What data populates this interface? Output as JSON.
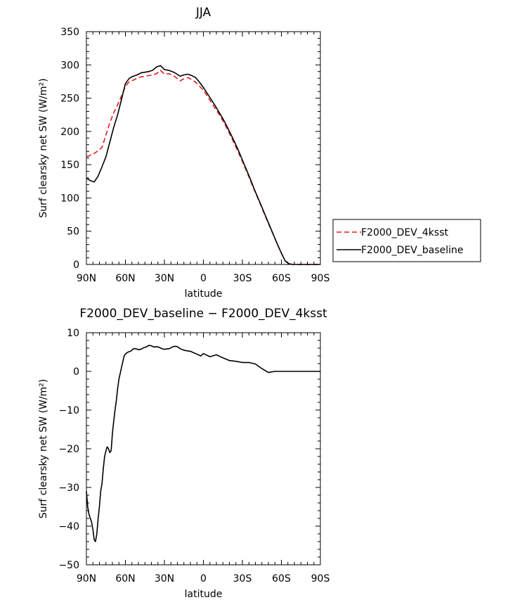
{
  "chart_data": [
    {
      "type": "line",
      "title": "JJA",
      "xlabel": "latitude",
      "ylabel": "Surf clearsky net SW (W/m²)",
      "xlim": [
        -90,
        90
      ],
      "ylim": [
        0,
        350
      ],
      "x_axis_direction": "90N to 90S (north on left)",
      "xtick_values": [
        -90,
        -60,
        -30,
        0,
        30,
        60,
        90
      ],
      "xtick_labels": [
        "90N",
        "60N",
        "30N",
        "0",
        "30S",
        "60S",
        "90S"
      ],
      "ytick_values": [
        0,
        50,
        100,
        150,
        200,
        250,
        300,
        350
      ],
      "ytick_labels": [
        "0",
        "50",
        "100",
        "150",
        "200",
        "250",
        "300",
        "350"
      ],
      "legend": {
        "placement": "right, outside plot",
        "entries": [
          "F2000_DEV_4ksst",
          "F2000_DEV_baseline"
        ]
      },
      "series": [
        {
          "name": "F2000_DEV_4ksst",
          "color": "#e41a1c",
          "dash": "dashed",
          "x": [
            -90,
            -87,
            -84,
            -81,
            -78,
            -75,
            -72,
            -69,
            -66,
            -63,
            -60,
            -57,
            -54,
            -51,
            -48,
            -45,
            -42,
            -39,
            -36,
            -33,
            -30,
            -27,
            -24,
            -21,
            -18,
            -15,
            -12,
            -9,
            -6,
            -3,
            0,
            3,
            6,
            9,
            12,
            15,
            18,
            21,
            24,
            27,
            30,
            33,
            36,
            39,
            42,
            45,
            48,
            51,
            54,
            57,
            60,
            63,
            66,
            69,
            72,
            75,
            78,
            81,
            84,
            87,
            90
          ],
          "y": [
            162,
            164,
            167,
            171,
            176,
            195,
            213,
            228,
            240,
            253,
            268,
            275,
            277,
            280,
            282,
            283,
            284,
            285,
            287,
            292,
            286,
            287,
            285,
            281,
            276,
            279,
            281,
            278,
            274,
            268,
            262,
            253,
            244,
            235,
            226,
            216,
            205,
            193,
            181,
            168,
            155,
            141,
            127,
            113,
            99,
            85,
            71,
            57,
            44,
            30,
            17,
            5,
            1,
            0,
            0,
            0,
            0,
            0,
            0,
            0,
            0
          ]
        },
        {
          "name": "F2000_DEV_baseline",
          "color": "#000000",
          "dash": "solid",
          "x": [
            -90,
            -87,
            -84,
            -81,
            -78,
            -75,
            -72,
            -69,
            -66,
            -63,
            -60,
            -57,
            -54,
            -51,
            -48,
            -45,
            -42,
            -39,
            -36,
            -33,
            -30,
            -27,
            -24,
            -21,
            -18,
            -15,
            -12,
            -9,
            -6,
            -3,
            0,
            3,
            6,
            9,
            12,
            15,
            18,
            21,
            24,
            27,
            30,
            33,
            36,
            39,
            42,
            45,
            48,
            51,
            54,
            57,
            60,
            63,
            66,
            69,
            72,
            75,
            78,
            81,
            84,
            87,
            90
          ],
          "y": [
            130,
            126,
            124,
            133,
            147,
            162,
            184,
            206,
            225,
            248,
            272,
            280,
            283,
            285,
            288,
            289,
            290,
            292,
            297,
            299,
            293,
            292,
            290,
            287,
            283,
            285,
            286,
            284,
            281,
            274,
            266,
            257,
            248,
            239,
            229,
            219,
            208,
            196,
            184,
            171,
            157,
            143,
            129,
            114,
            100,
            86,
            72,
            58,
            44,
            30,
            17,
            5,
            1,
            0,
            0,
            0,
            0,
            0,
            0,
            0,
            0
          ]
        }
      ]
    },
    {
      "type": "line",
      "title": "F2000_DEV_baseline − F2000_DEV_4ksst",
      "xlabel": "latitude",
      "ylabel": "Surf clearsky net SW (W/m²)",
      "xlim": [
        -90,
        90
      ],
      "ylim": [
        -50,
        10
      ],
      "x_axis_direction": "90N to 90S (north on left)",
      "xtick_values": [
        -90,
        -60,
        -30,
        0,
        30,
        60,
        90
      ],
      "xtick_labels": [
        "90N",
        "60N",
        "30N",
        "0",
        "30S",
        "60S",
        "90S"
      ],
      "ytick_values": [
        -50,
        -40,
        -30,
        -20,
        -10,
        0,
        10
      ],
      "ytick_labels": [
        "−50",
        "−40",
        "−30",
        "−20",
        "−10",
        "0",
        "10"
      ],
      "series": [
        {
          "color": "#000000",
          "dash": "solid",
          "x": [
            -90,
            -89,
            -88,
            -87,
            -86,
            -85,
            -84,
            -83,
            -82,
            -81,
            -80,
            -79,
            -78,
            -77,
            -76,
            -75,
            -74,
            -73,
            -72,
            -71,
            -70,
            -69,
            -68,
            -67,
            -66,
            -65,
            -64,
            -63,
            -62,
            -61,
            -60,
            -58,
            -56,
            -54,
            -52,
            -50,
            -48,
            -46,
            -44,
            -42,
            -40,
            -38,
            -36,
            -34,
            -32,
            -30,
            -28,
            -26,
            -24,
            -22,
            -20,
            -18,
            -16,
            -14,
            -12,
            -10,
            -8,
            -6,
            -4,
            -2,
            0,
            5,
            10,
            15,
            20,
            25,
            30,
            35,
            40,
            45,
            50,
            55,
            60,
            62,
            64,
            66,
            70,
            75,
            80,
            85,
            90
          ],
          "y": [
            -31,
            -35,
            -37,
            -38,
            -39,
            -41,
            -43.5,
            -44,
            -42,
            -38,
            -35,
            -31,
            -29,
            -25,
            -22,
            -20.5,
            -19.5,
            -20,
            -21,
            -20.5,
            -16,
            -13,
            -10,
            -7.5,
            -4.5,
            -2,
            -0.5,
            1,
            2.5,
            4,
            4.5,
            5,
            5.2,
            5.8,
            5.9,
            5.6,
            5.7,
            6.1,
            6.3,
            6.7,
            6.6,
            6.3,
            6.4,
            6.2,
            5.9,
            5.7,
            5.8,
            5.9,
            6.3,
            6.5,
            6.4,
            5.9,
            5.6,
            5.4,
            5.3,
            5.2,
            4.9,
            4.6,
            4.3,
            4.0,
            4.6,
            3.8,
            4.3,
            3.5,
            2.8,
            2.6,
            2.3,
            2.3,
            1.9,
            0.7,
            -0.3,
            0,
            0,
            0,
            0,
            0,
            0,
            0,
            0,
            0,
            0
          ]
        }
      ]
    }
  ]
}
